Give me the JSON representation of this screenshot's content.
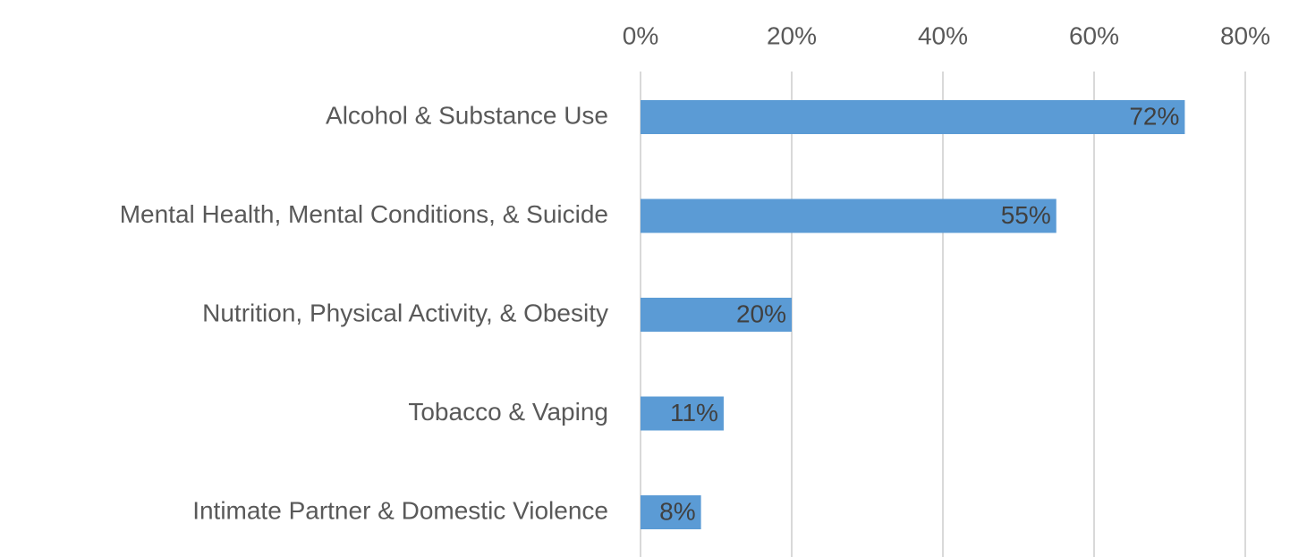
{
  "chart_data": {
    "type": "bar",
    "orientation": "horizontal",
    "categories": [
      "Alcohol & Substance Use",
      "Mental Health, Mental Conditions, & Suicide",
      "Nutrition, Physical Activity, & Obesity",
      "Tobacco & Vaping",
      "Intimate Partner & Domestic Violence"
    ],
    "values": [
      72,
      55,
      20,
      11,
      8
    ],
    "data_labels": [
      "72%",
      "55%",
      "20%",
      "11%",
      "8%"
    ],
    "x_ticks": [
      "0%",
      "20%",
      "40%",
      "60%",
      "80%"
    ],
    "xlim": [
      0,
      80
    ],
    "x_axis_position": "top",
    "grid": true,
    "title": "",
    "xlabel": "",
    "ylabel": "",
    "bar_color": "#5B9BD5"
  }
}
